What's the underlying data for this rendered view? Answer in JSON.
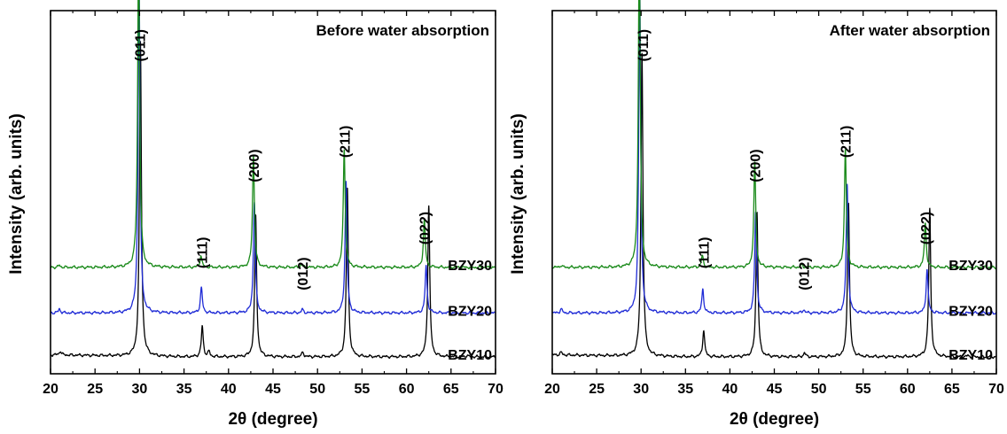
{
  "chart_data": [
    {
      "type": "line",
      "title": "Before water absorption",
      "xlabel": "2θ (degree)",
      "ylabel": "Intensity (arb. units)",
      "xlim": [
        20,
        70
      ],
      "x_ticks": [
        20,
        25,
        30,
        35,
        40,
        45,
        50,
        55,
        60,
        65,
        70
      ],
      "y_ticks_labels": false,
      "peak_labels": [
        {
          "text": "(011)",
          "x": 30.0,
          "y": 1.02
        },
        {
          "text": "(111)",
          "x": 37.0,
          "y": 0.405
        },
        {
          "text": "(200)",
          "x": 42.8,
          "y": 0.665
        },
        {
          "text": "(012)",
          "x": 48.3,
          "y": 0.345
        },
        {
          "text": "(211)",
          "x": 53.0,
          "y": 0.735
        },
        {
          "text": "(022)",
          "x": 62.0,
          "y": 0.48
        }
      ],
      "series": [
        {
          "name": "BZY30",
          "color": "#1a8a1a",
          "baseline": 0.315,
          "peaks": [
            [
              21.0,
              0.006
            ],
            [
              29.9,
              0.96
            ],
            [
              36.9,
              0.035
            ],
            [
              42.8,
              0.33
            ],
            [
              48.2,
              0.008
            ],
            [
              53.0,
              0.35
            ],
            [
              62.0,
              0.14
            ]
          ]
        },
        {
          "name": "BZY20",
          "color": "#1f2bd6",
          "baseline": 0.18,
          "peaks": [
            [
              21.0,
              0.012
            ],
            [
              29.95,
              0.98
            ],
            [
              36.95,
              0.075
            ],
            [
              42.9,
              0.33
            ],
            [
              48.3,
              0.01
            ],
            [
              53.2,
              0.39
            ],
            [
              62.2,
              0.14
            ]
          ]
        },
        {
          "name": "BZY10",
          "color": "#000000",
          "baseline": 0.05,
          "peaks": [
            [
              21.1,
              0.012
            ],
            [
              30.1,
              0.93
            ],
            [
              37.05,
              0.09
            ],
            [
              37.8,
              0.015
            ],
            [
              43.05,
              0.42
            ],
            [
              48.35,
              0.014
            ],
            [
              53.35,
              0.5
            ],
            [
              62.5,
              0.45
            ],
            [
              66.8,
              0.004
            ]
          ]
        }
      ],
      "series_labels": [
        "BZY30",
        "BZY20",
        "BZY10"
      ]
    },
    {
      "type": "line",
      "title": "After water absorption",
      "xlabel": "2θ (degree)",
      "ylabel": "Intensity (arb. units)",
      "xlim": [
        20,
        70
      ],
      "x_ticks": [
        20,
        25,
        30,
        35,
        40,
        45,
        50,
        55,
        60,
        65,
        70
      ],
      "y_ticks_labels": false,
      "peak_labels": [
        {
          "text": "(011)",
          "x": 30.2,
          "y": 1.02
        },
        {
          "text": "(111)",
          "x": 37.0,
          "y": 0.405
        },
        {
          "text": "(200)",
          "x": 42.8,
          "y": 0.665
        },
        {
          "text": "(012)",
          "x": 48.3,
          "y": 0.345
        },
        {
          "text": "(211)",
          "x": 53.0,
          "y": 0.735
        },
        {
          "text": "(022)",
          "x": 62.0,
          "y": 0.48
        }
      ],
      "series": [
        {
          "name": "BZY30",
          "color": "#1a8a1a",
          "baseline": 0.315,
          "peaks": [
            [
              21.0,
              0.006
            ],
            [
              29.8,
              0.96
            ],
            [
              36.9,
              0.035
            ],
            [
              42.8,
              0.31
            ],
            [
              48.1,
              0.007
            ],
            [
              53.0,
              0.35
            ],
            [
              62.0,
              0.13
            ]
          ]
        },
        {
          "name": "BZY20",
          "color": "#1f2bd6",
          "baseline": 0.18,
          "peaks": [
            [
              21.0,
              0.012
            ],
            [
              29.85,
              0.96
            ],
            [
              36.95,
              0.07
            ],
            [
              42.9,
              0.3
            ],
            [
              48.3,
              0.01
            ],
            [
              53.2,
              0.38
            ],
            [
              62.2,
              0.13
            ]
          ]
        },
        {
          "name": "BZY10",
          "color": "#000000",
          "baseline": 0.05,
          "peaks": [
            [
              21.0,
              0.008
            ],
            [
              30.1,
              0.9
            ],
            [
              37.05,
              0.08
            ],
            [
              43.05,
              0.43
            ],
            [
              48.4,
              0.012
            ],
            [
              53.35,
              0.46
            ],
            [
              62.5,
              0.44
            ],
            [
              66.8,
              0.004
            ]
          ]
        }
      ],
      "series_labels": [
        "BZY30",
        "BZY20",
        "BZY10"
      ]
    }
  ]
}
